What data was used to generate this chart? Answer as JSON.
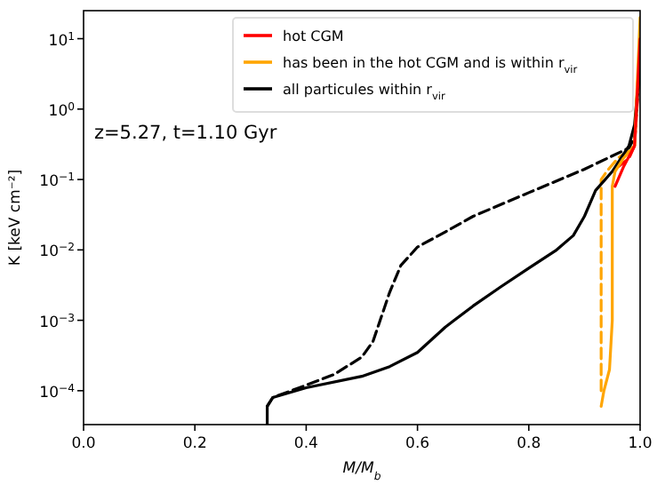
{
  "chart_data": {
    "type": "line",
    "xlabel": "M/M$_{b}$",
    "ylabel": "K [keV cm⁻²]",
    "log": "y",
    "xlim": [
      0,
      1
    ],
    "ylim": [
      3.3e-05,
      25
    ],
    "xticks": [
      {
        "value": 0,
        "label": "0.0"
      },
      {
        "value": 0.2,
        "label": "0.2"
      },
      {
        "value": 0.4,
        "label": "0.4"
      },
      {
        "value": 0.6,
        "label": "0.6"
      },
      {
        "value": 0.8,
        "label": "0.8"
      },
      {
        "value": 1,
        "label": "1.0"
      }
    ],
    "yticks": [
      {
        "value": 0.0001,
        "label": "10$^{−4}$"
      },
      {
        "value": 0.001,
        "label": "10$^{−3}$"
      },
      {
        "value": 0.01,
        "label": "10$^{−2}$"
      },
      {
        "value": 0.1,
        "label": "10$^{−1}$"
      },
      {
        "value": 1,
        "label": "10$^{0}$"
      },
      {
        "value": 10,
        "label": "10$^{1}$"
      }
    ],
    "legend": "top right",
    "grid": false,
    "marker": "none",
    "annotations": [
      "z=5.27, t=1.10 Gyr"
    ],
    "series": [
      {
        "name": "hot CGM",
        "color": "#ff0000",
        "line_style": "solid",
        "x": [
          0.955,
          0.97,
          0.99,
          1.0
        ],
        "values": [
          0.08,
          0.15,
          0.3,
          10
        ]
      },
      {
        "name": "has been in the hot CGM and is within r$_{vir}$",
        "color": "#ffa500",
        "line_style": "solid",
        "x": [
          0.93,
          0.935,
          0.945,
          0.95,
          0.95,
          0.955,
          0.97,
          0.99,
          1.0
        ],
        "values": [
          6e-05,
          0.0001,
          0.0002,
          0.001,
          0.08,
          0.13,
          0.2,
          0.3,
          20
        ]
      },
      {
        "name": "all particules within r$_{vir}$",
        "color": "#000000",
        "line_style": "solid",
        "x": [
          0.33,
          0.33,
          0.34,
          0.4,
          0.5,
          0.55,
          0.6,
          0.65,
          0.7,
          0.75,
          0.8,
          0.85,
          0.88,
          0.9,
          0.92,
          0.95,
          0.98,
          0.99,
          1.0
        ],
        "values": [
          3.3e-05,
          6e-05,
          8e-05,
          0.00011,
          0.00016,
          0.00022,
          0.00035,
          0.0008,
          0.0016,
          0.003,
          0.0055,
          0.01,
          0.016,
          0.03,
          0.07,
          0.13,
          0.3,
          0.6,
          5
        ]
      },
      {
        "color": "#000000",
        "line_style": "dashed",
        "x": [
          0.33,
          0.34,
          0.4,
          0.45,
          0.5,
          0.52,
          0.55,
          0.57,
          0.6,
          0.65,
          0.7,
          0.8,
          0.9,
          0.98,
          0.99,
          1.0
        ],
        "values": [
          6e-05,
          8e-05,
          0.00012,
          0.00017,
          0.0003,
          0.0005,
          0.0025,
          0.006,
          0.011,
          0.018,
          0.03,
          0.065,
          0.14,
          0.28,
          0.4,
          5
        ]
      },
      {
        "color": "#ffa500",
        "line_style": "dashed",
        "x": [
          0.93,
          0.93,
          0.94,
          0.96,
          0.99,
          1.0
        ],
        "values": [
          0.0001,
          0.1,
          0.13,
          0.2,
          0.3,
          10
        ]
      },
      {
        "color": "#ff0000",
        "line_style": "dashed",
        "x": [
          0.96,
          0.98,
          0.99,
          1.0
        ],
        "values": [
          0.15,
          0.2,
          0.3,
          5
        ]
      }
    ]
  }
}
